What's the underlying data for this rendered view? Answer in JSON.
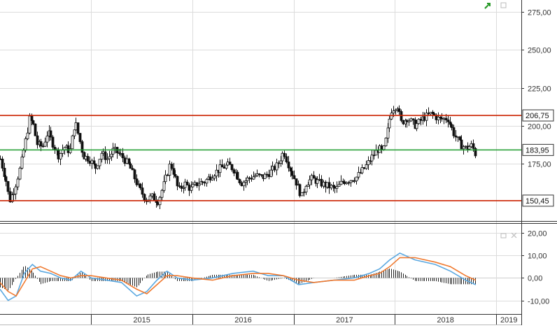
{
  "chart_data": [
    {
      "type": "candlestick",
      "panel": "price",
      "y_ticks": [
        "275,00",
        "250,00",
        "225,00",
        "200,00",
        "175,00"
      ],
      "ylim": [
        137,
        283
      ],
      "y_tick_values": [
        275,
        250,
        225,
        200,
        175
      ],
      "levels": [
        {
          "label": "206,75",
          "value": 206.75,
          "color": "#cc2200"
        },
        {
          "label": "183,95",
          "value": 183.95,
          "color": "#1a9a2a"
        },
        {
          "label": "150,45",
          "value": 150.45,
          "color": "#cc2200"
        }
      ],
      "x_labels": [
        {
          "label": "2015",
          "t": 2015.0
        },
        {
          "label": "2016",
          "t": 2016.0
        },
        {
          "label": "2017",
          "t": 2017.0
        },
        {
          "label": "2018",
          "t": 2018.0
        },
        {
          "label": "2019",
          "t": 2019.0
        }
      ],
      "xlim": [
        2014.1,
        2019.25
      ],
      "grid": true,
      "price_path": [
        [
          2014.1,
          178
        ],
        [
          2014.16,
          163
        ],
        [
          2014.19,
          150
        ],
        [
          2014.24,
          158
        ],
        [
          2014.3,
          173
        ],
        [
          2014.35,
          190
        ],
        [
          2014.39,
          205
        ],
        [
          2014.43,
          200
        ],
        [
          2014.46,
          188
        ],
        [
          2014.52,
          186
        ],
        [
          2014.57,
          196
        ],
        [
          2014.62,
          188
        ],
        [
          2014.68,
          180
        ],
        [
          2014.73,
          186
        ],
        [
          2014.79,
          183
        ],
        [
          2014.84,
          203
        ],
        [
          2014.88,
          192
        ],
        [
          2014.92,
          180
        ],
        [
          2014.98,
          178
        ],
        [
          2015.04,
          172
        ],
        [
          2015.1,
          182
        ],
        [
          2015.16,
          178
        ],
        [
          2015.22,
          184
        ],
        [
          2015.3,
          180
        ],
        [
          2015.38,
          173
        ],
        [
          2015.46,
          160
        ],
        [
          2015.54,
          151
        ],
        [
          2015.6,
          153
        ],
        [
          2015.66,
          150
        ],
        [
          2015.72,
          162
        ],
        [
          2015.78,
          175
        ],
        [
          2015.82,
          168
        ],
        [
          2015.86,
          157
        ],
        [
          2015.92,
          162
        ],
        [
          2015.98,
          158
        ],
        [
          2016.05,
          162
        ],
        [
          2016.12,
          163
        ],
        [
          2016.2,
          168
        ],
        [
          2016.28,
          172
        ],
        [
          2016.36,
          174
        ],
        [
          2016.42,
          170
        ],
        [
          2016.48,
          162
        ],
        [
          2016.55,
          165
        ],
        [
          2016.62,
          167
        ],
        [
          2016.7,
          166
        ],
        [
          2016.78,
          170
        ],
        [
          2016.84,
          174
        ],
        [
          2016.9,
          183
        ],
        [
          2016.96,
          172
        ],
        [
          2017.02,
          163
        ],
        [
          2017.08,
          153
        ],
        [
          2017.12,
          162
        ],
        [
          2017.18,
          165
        ],
        [
          2017.26,
          162
        ],
        [
          2017.34,
          160
        ],
        [
          2017.42,
          158
        ],
        [
          2017.48,
          163
        ],
        [
          2017.54,
          164
        ],
        [
          2017.62,
          166
        ],
        [
          2017.7,
          172
        ],
        [
          2017.78,
          180
        ],
        [
          2017.84,
          185
        ],
        [
          2017.88,
          182
        ],
        [
          2017.92,
          194
        ],
        [
          2017.96,
          210
        ],
        [
          2018.02,
          214
        ],
        [
          2018.06,
          202
        ],
        [
          2018.12,
          205
        ],
        [
          2018.2,
          200
        ],
        [
          2018.28,
          205
        ],
        [
          2018.36,
          208
        ],
        [
          2018.44,
          204
        ],
        [
          2018.52,
          205
        ],
        [
          2018.58,
          195
        ],
        [
          2018.64,
          188
        ],
        [
          2018.7,
          185
        ],
        [
          2018.76,
          187
        ],
        [
          2018.8,
          180
        ]
      ]
    },
    {
      "type": "line",
      "panel": "oscillator",
      "y_ticks": [
        "20,00",
        "10,00",
        "0,00",
        "-10,00"
      ],
      "y_tick_values": [
        20,
        10,
        0,
        -10
      ],
      "ylim": [
        -16,
        24
      ],
      "series": [
        {
          "color": "#5ba8e0",
          "x": [
            2014.1,
            2014.18,
            2014.26,
            2014.34,
            2014.42,
            2014.5,
            2014.6,
            2014.7,
            2014.8,
            2014.9,
            2015.0,
            2015.15,
            2015.3,
            2015.45,
            2015.55,
            2015.65,
            2015.75,
            2015.85,
            2016.0,
            2016.2,
            2016.4,
            2016.6,
            2016.75,
            2016.9,
            2017.05,
            2017.2,
            2017.4,
            2017.6,
            2017.75,
            2017.85,
            2017.95,
            2018.05,
            2018.2,
            2018.4,
            2018.55,
            2018.7,
            2018.8
          ],
          "values": [
            -5,
            -10,
            -8,
            2,
            6,
            3,
            2,
            0,
            -1,
            3,
            0,
            -1,
            -2,
            -8,
            -6,
            -1,
            3,
            0,
            -1,
            0,
            2,
            3,
            1,
            1,
            -3,
            -2,
            -1,
            0,
            2,
            4,
            8,
            11,
            8,
            6,
            3,
            -1,
            -3
          ]
        },
        {
          "color": "#f07a30",
          "x": [
            2014.1,
            2014.18,
            2014.26,
            2014.34,
            2014.42,
            2014.5,
            2014.6,
            2014.7,
            2014.8,
            2014.9,
            2015.0,
            2015.15,
            2015.3,
            2015.45,
            2015.55,
            2015.65,
            2015.75,
            2015.85,
            2016.0,
            2016.2,
            2016.4,
            2016.6,
            2016.75,
            2016.9,
            2017.05,
            2017.2,
            2017.4,
            2017.6,
            2017.75,
            2017.85,
            2017.95,
            2018.05,
            2018.2,
            2018.4,
            2018.55,
            2018.7,
            2018.8
          ],
          "values": [
            -2,
            -6,
            -8,
            -2,
            4,
            5,
            3,
            1,
            0,
            1,
            1,
            0,
            -1,
            -5,
            -7,
            -3,
            1,
            1,
            0,
            -1,
            1,
            2,
            2,
            1,
            -1,
            -2,
            -1,
            -1,
            1,
            2,
            5,
            9,
            9,
            7,
            5,
            1,
            -1
          ]
        }
      ]
    }
  ]
}
